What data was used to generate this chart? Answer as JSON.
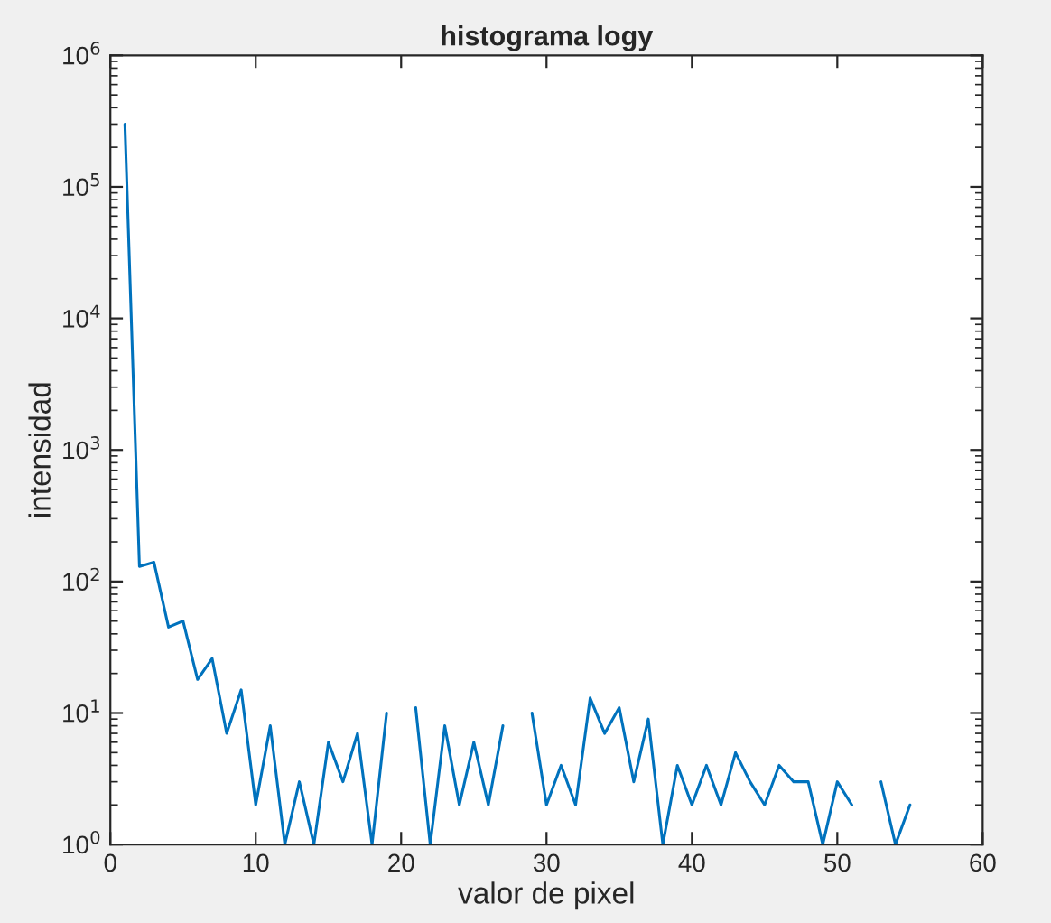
{
  "chart_data": {
    "type": "line",
    "title": "histograma logy",
    "xlabel": "valor de pixel",
    "ylabel": "intensidad",
    "x": [
      1,
      2,
      3,
      4,
      5,
      6,
      7,
      8,
      9,
      10,
      11,
      12,
      13,
      14,
      15,
      16,
      17,
      18,
      19,
      20,
      21,
      22,
      23,
      24,
      25,
      26,
      27,
      28,
      29,
      30,
      31,
      32,
      33,
      34,
      35,
      36,
      37,
      38,
      39,
      40,
      41,
      42,
      43,
      44,
      45,
      46,
      47,
      48,
      49,
      50,
      51,
      52,
      53,
      54,
      55
    ],
    "series": [
      {
        "color": "#0072bd",
        "values": [
          300000,
          130,
          140,
          45,
          50,
          18,
          26,
          7,
          15,
          2,
          8,
          1,
          3,
          1,
          6,
          3,
          7,
          1,
          10,
          null,
          11,
          1,
          8,
          2,
          6,
          2,
          8,
          null,
          10,
          2,
          4,
          2,
          13,
          7,
          11,
          3,
          9,
          1,
          4,
          2,
          4,
          2,
          5,
          3,
          2,
          4,
          3,
          3,
          1,
          3,
          2,
          null,
          3,
          1,
          2
        ]
      }
    ],
    "log": "y",
    "xlim": [
      0,
      60
    ],
    "xticks": [
      0,
      10,
      20,
      30,
      40,
      50,
      60
    ],
    "ylim": [
      1,
      1000000
    ],
    "yticks": [
      {
        "value": 1,
        "label": "10$^{0}$"
      },
      {
        "value": 10,
        "label": "10$^{1}$"
      },
      {
        "value": 100,
        "label": "10$^{2}$"
      },
      {
        "value": 1000,
        "label": "10$^{3}$"
      },
      {
        "value": 10000,
        "label": "10$^{4}$"
      },
      {
        "value": 100000,
        "label": "10$^{5}$"
      },
      {
        "value": 1000000,
        "label": "10$^{6}$"
      }
    ],
    "grid": false,
    "marker": "none",
    "line_style": "solid"
  }
}
